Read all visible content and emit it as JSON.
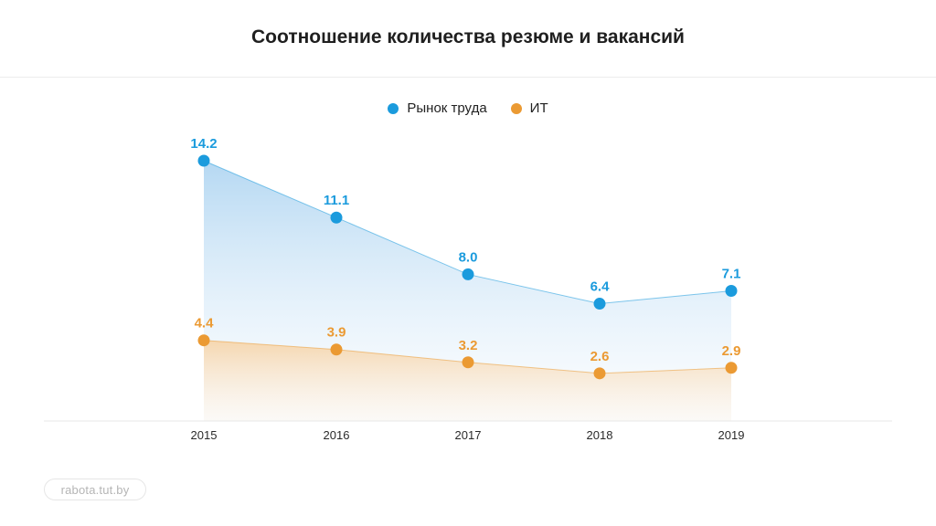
{
  "title": "Соотношение количества резюме и вакансий",
  "watermark": "rabota.tut.by",
  "colors": {
    "market": "#1b9bdd",
    "it": "#eb9a33"
  },
  "chart_data": {
    "type": "area",
    "categories": [
      "2015",
      "2016",
      "2017",
      "2018",
      "2019"
    ],
    "series": [
      {
        "name": "Рынок труда",
        "values": [
          14.2,
          11.1,
          8.0,
          6.4,
          7.1
        ],
        "labels": [
          "14.2",
          "11.1",
          "8.0",
          "6.4",
          "7.1"
        ]
      },
      {
        "name": "ИТ",
        "values": [
          4.4,
          3.9,
          3.2,
          2.6,
          2.9
        ],
        "labels": [
          "4.4",
          "3.9",
          "3.2",
          "2.6",
          "2.9"
        ]
      }
    ],
    "legend": "top-center",
    "grid": false
  }
}
